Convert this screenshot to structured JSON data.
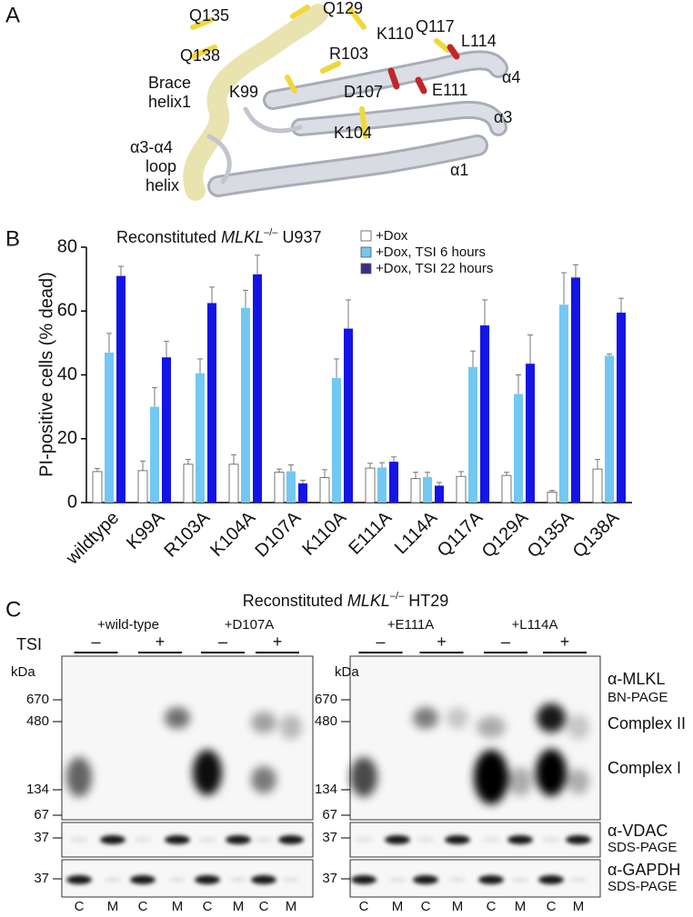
{
  "panel_a": {
    "letter": "A",
    "labels": [
      {
        "lines": [
          "Q135"
        ],
        "color": "#c8a83e"
      },
      {
        "lines": [
          "Q129"
        ],
        "color": "#c8a83e"
      },
      {
        "lines": [
          "Q138"
        ],
        "color": "#c8a83e"
      },
      {
        "lines": [
          "R103"
        ],
        "color": "#c8a83e"
      },
      {
        "lines": [
          "K110"
        ],
        "color": "#c8a83e"
      },
      {
        "lines": [
          "Q117"
        ],
        "color": "#c8a83e"
      },
      {
        "lines": [
          "L114"
        ],
        "color": "#c0272d"
      },
      {
        "lines": [
          "K99"
        ],
        "color": "#c8a83e"
      },
      {
        "lines": [
          "D107"
        ],
        "color": "#c0272d"
      },
      {
        "lines": [
          "E111"
        ],
        "color": "#c0272d"
      },
      {
        "lines": [
          "K104"
        ],
        "color": "#c8a83e"
      },
      {
        "lines": [
          "Brace",
          "helix1"
        ],
        "color": "#222222"
      },
      {
        "lines": [
          "α4"
        ],
        "color": "#222222"
      },
      {
        "lines": [
          "α3"
        ],
        "color": "#222222"
      },
      {
        "lines": [
          "α3-α4",
          "loop",
          "helix"
        ],
        "color": "#222222"
      },
      {
        "lines": [
          "α1"
        ],
        "color": "#222222"
      }
    ]
  },
  "chart_data": {
    "type": "bar",
    "letter": "B",
    "title_prefix": "Reconstituted",
    "title_gene": "MLKL",
    "title_superscript": "–/–",
    "title_suffix": "U937",
    "ylabel": "PI-positive cells (% dead)",
    "categories": [
      "wildtype",
      "K99A",
      "R103A",
      "K104A",
      "D107A",
      "K110A",
      "E111A",
      "L114A",
      "Q117A",
      "Q129A",
      "Q135A",
      "Q138A"
    ],
    "series": [
      {
        "name": "+Dox",
        "color": "#ffffff",
        "values": [
          9.7,
          10,
          12,
          12,
          9.5,
          7.8,
          10.8,
          7.5,
          8.2,
          8.5,
          3.3,
          10.5
        ],
        "errors": [
          1,
          3,
          1.5,
          3,
          1,
          2.5,
          1.5,
          2,
          1.5,
          1,
          0.5,
          3
        ]
      },
      {
        "name": "+Dox, TSI 6 hours",
        "color": "#72c8f2",
        "values": [
          47,
          30,
          40.5,
          61,
          9.8,
          39,
          11,
          8,
          42.5,
          34,
          62,
          46
        ],
        "errors": [
          6,
          6,
          4.5,
          5.5,
          2,
          6,
          1.5,
          1.5,
          5,
          6,
          10,
          0.5
        ]
      },
      {
        "name": "+Dox, TSI 22 hours",
        "color": "#1414e6",
        "values": [
          71,
          45.5,
          62.5,
          71.5,
          6,
          54.5,
          12.8,
          5.3,
          55.5,
          43.5,
          70.5,
          59.5
        ],
        "errors": [
          3,
          5,
          5,
          6,
          1,
          9,
          1.5,
          1,
          8,
          9,
          4,
          4.5
        ]
      }
    ],
    "ylim": [
      0,
      80
    ],
    "yticks": [
      0,
      20,
      40,
      60,
      80
    ],
    "legend": "top-right"
  },
  "panel_c": {
    "letter": "C",
    "title_prefix": "Reconstituted",
    "title_gene": "MLKL",
    "title_superscript": "–/–",
    "title_suffix": "HT29",
    "tsi_label": "TSI",
    "kda_label": "kDa",
    "blots": [
      {
        "groups": [
          "+wild-type",
          "+D107A"
        ],
        "treatments": [
          "–",
          "+",
          "–",
          "+"
        ],
        "markers_bn": [
          670,
          480,
          134,
          67
        ],
        "marker_vdac": 37,
        "marker_gapdh": 37,
        "lanes": [
          "C",
          "M",
          "C",
          "M",
          "C",
          "M",
          "C",
          "M"
        ]
      },
      {
        "groups": [
          "+E111A",
          "+L114A"
        ],
        "treatments": [
          "–",
          "+",
          "–",
          "+"
        ],
        "markers_bn": [
          670,
          480,
          134,
          67
        ],
        "marker_vdac": 37,
        "marker_gapdh": 37,
        "lanes": [
          "C",
          "M",
          "C",
          "M",
          "C",
          "M",
          "C",
          "M"
        ]
      }
    ],
    "side_labels": [
      "α-MLKL",
      "BN-PAGE",
      "Complex II",
      "Complex I",
      "α-VDAC",
      "SDS-PAGE",
      "α-GAPDH",
      "SDS-PAGE"
    ]
  }
}
